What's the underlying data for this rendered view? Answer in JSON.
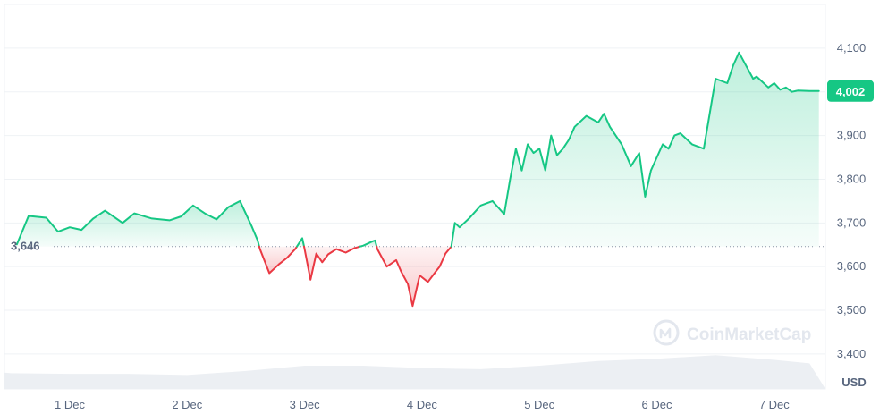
{
  "chart_data": {
    "type": "area",
    "currency_label": "USD",
    "baseline_label": "3,646",
    "current_label": "4,002",
    "watermark": "CoinMarketCap",
    "x_tick_labels": [
      "1 Dec",
      "2 Dec",
      "3 Dec",
      "4 Dec",
      "5 Dec",
      "6 Dec",
      "7 Dec"
    ],
    "y_tick_labels": [
      "3,400",
      "3,500",
      "3,600",
      "3,700",
      "3,800",
      "3,900",
      "4,000",
      "4,100"
    ],
    "y_ticks": [
      3400,
      3500,
      3600,
      3700,
      3800,
      3900,
      4000,
      4100
    ],
    "ylim": [
      3320,
      4200
    ],
    "baseline": 3646,
    "current": 4002,
    "colors": {
      "up": "#16c784",
      "down": "#ea3943",
      "up_fill": "#16c784",
      "down_fill": "#ea3943",
      "volume": "#eceff3",
      "grid": "#eff2f5",
      "label": "#58667e",
      "badge": "#16c784"
    },
    "series": [
      {
        "x": [
          0.55,
          0.65,
          0.8,
          0.9,
          1.0,
          1.1,
          1.2,
          1.3,
          1.45,
          1.55,
          1.7,
          1.85,
          1.95,
          2.05,
          2.15,
          2.25,
          2.35,
          2.45,
          2.55,
          2.6,
          2.62,
          2.7,
          2.78,
          2.85,
          2.92,
          2.98,
          3.0,
          3.05,
          3.1,
          3.15,
          3.2,
          3.27,
          3.35,
          3.42,
          3.5,
          3.58,
          3.6,
          3.62,
          3.7,
          3.78,
          3.82,
          3.88,
          3.92,
          3.98,
          4.05,
          4.12,
          4.15,
          4.2,
          4.25,
          4.28,
          4.32,
          4.4,
          4.5,
          4.6,
          4.7,
          4.75,
          4.8,
          4.85,
          4.9,
          4.95,
          5.0,
          5.05,
          5.1,
          5.15,
          5.2,
          5.25,
          5.3,
          5.4,
          5.5,
          5.55,
          5.6,
          5.7,
          5.78,
          5.85,
          5.9,
          5.95,
          6.0,
          6.05,
          6.1,
          6.15,
          6.2,
          6.3,
          6.4,
          6.5,
          6.6,
          6.65,
          6.7,
          6.78,
          6.82,
          6.85,
          6.95,
          7.0,
          7.05,
          7.1,
          7.15,
          7.2,
          7.3,
          7.38
        ],
        "y": [
          3651,
          3716,
          3712,
          3680,
          3690,
          3684,
          3710,
          3728,
          3700,
          3722,
          3710,
          3706,
          3715,
          3740,
          3722,
          3708,
          3736,
          3750,
          3692,
          3660,
          3640,
          3585,
          3605,
          3620,
          3640,
          3665,
          3640,
          3570,
          3630,
          3610,
          3628,
          3640,
          3632,
          3642,
          3648,
          3658,
          3660,
          3640,
          3600,
          3615,
          3590,
          3560,
          3510,
          3580,
          3565,
          3590,
          3600,
          3630,
          3646,
          3700,
          3690,
          3710,
          3740,
          3750,
          3720,
          3800,
          3870,
          3820,
          3880,
          3860,
          3870,
          3820,
          3900,
          3855,
          3870,
          3890,
          3920,
          3945,
          3930,
          3950,
          3920,
          3880,
          3830,
          3860,
          3760,
          3820,
          3850,
          3880,
          3870,
          3900,
          3905,
          3880,
          3870,
          4030,
          4020,
          4060,
          4090,
          4050,
          4030,
          4035,
          4010,
          4020,
          4005,
          4010,
          4000,
          4003,
          4002,
          4002
        ]
      }
    ],
    "volume_series": {
      "x": [
        0.0,
        0.5,
        1.0,
        1.5,
        2.0,
        2.5,
        3.0,
        3.5,
        4.0,
        4.5,
        5.0,
        5.5,
        6.0,
        6.5,
        7.0,
        7.3
      ],
      "y": [
        0.28,
        0.27,
        0.26,
        0.26,
        0.24,
        0.31,
        0.4,
        0.4,
        0.36,
        0.34,
        0.4,
        0.48,
        0.52,
        0.58,
        0.5,
        0.44
      ]
    }
  }
}
